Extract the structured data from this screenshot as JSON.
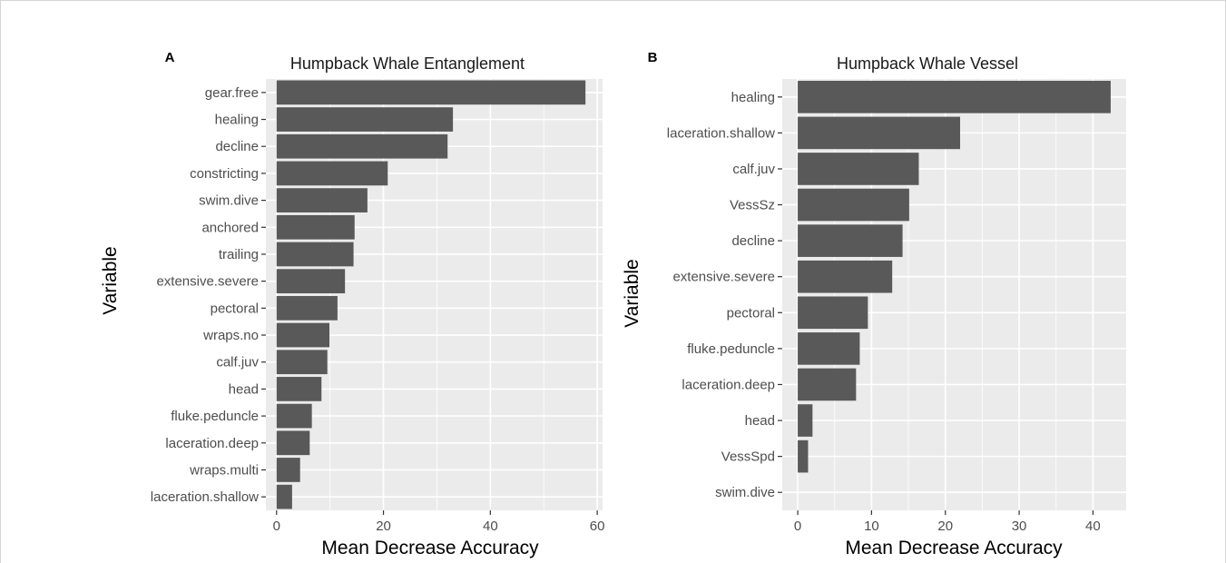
{
  "figure": {
    "background": "#ffffff",
    "panel_background": "#ebebeb",
    "grid_color": "#ffffff",
    "bar_color": "#595959",
    "tick_color": "#333333"
  },
  "chart_data": [
    {
      "type": "bar",
      "orientation": "horizontal",
      "panel_label": "A",
      "title": "Humpback Whale Entanglement",
      "xlabel": "Mean Decrease Accuracy",
      "ylabel": "Variable",
      "xlim": [
        -2,
        61
      ],
      "xticks": [
        0,
        20,
        40,
        60
      ],
      "grid": true,
      "categories": [
        "gear.free",
        "healing",
        "decline",
        "constricting",
        "swim.dive",
        "anchored",
        "trailing",
        "extensive.severe",
        "pectoral",
        "wraps.no",
        "calf.juv",
        "head",
        "fluke.peduncle",
        "laceration.deep",
        "wraps.multi",
        "laceration.shallow"
      ],
      "values": [
        57.8,
        33.0,
        32.0,
        20.8,
        17.0,
        14.6,
        14.4,
        12.8,
        11.4,
        9.9,
        9.5,
        8.4,
        6.6,
        6.2,
        4.4,
        2.9
      ]
    },
    {
      "type": "bar",
      "orientation": "horizontal",
      "panel_label": "B",
      "title": "Humpback Whale Vessel",
      "xlabel": "Mean Decrease Accuracy",
      "ylabel": "Variable",
      "xlim": [
        -2.1,
        44.5
      ],
      "xticks": [
        0,
        10,
        20,
        30,
        40
      ],
      "grid": true,
      "categories": [
        "healing",
        "laceration.shallow",
        "calf.juv",
        "VessSz",
        "decline",
        "extensive.severe",
        "pectoral",
        "fluke.peduncle",
        "laceration.deep",
        "head",
        "VessSpd",
        "swim.dive"
      ],
      "values": [
        42.4,
        22.0,
        16.4,
        15.1,
        14.2,
        12.8,
        9.5,
        8.4,
        7.9,
        2.0,
        1.4,
        0.0
      ]
    }
  ]
}
